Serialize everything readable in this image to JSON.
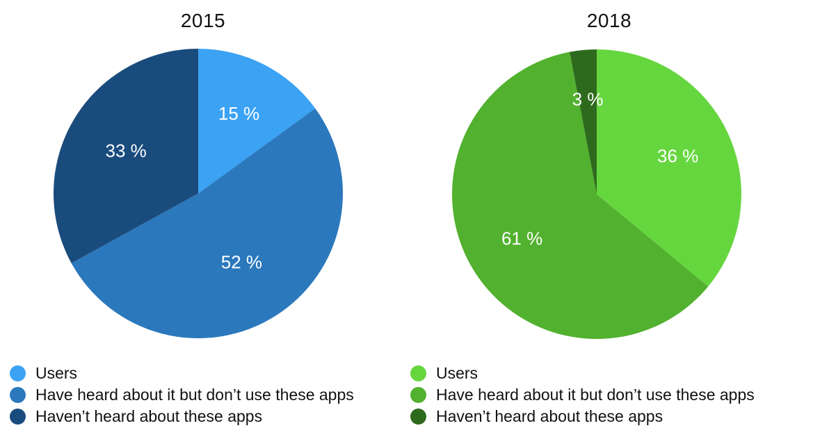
{
  "chart_data": [
    {
      "type": "pie",
      "title": "2015",
      "slices": [
        {
          "label": "Users",
          "value": 15,
          "display": "15 %",
          "color": "#3ba2f4"
        },
        {
          "label": "Have heard about it but don’t use these apps",
          "value": 52,
          "display": "52 %",
          "color": "#2b78bd"
        },
        {
          "label": "Haven’t heard about these apps",
          "value": 33,
          "display": "33 %",
          "color": "#1a4b7d"
        }
      ],
      "start_angle_deg": 0,
      "direction": "clockwise",
      "legend_position": "bottom-left"
    },
    {
      "type": "pie",
      "title": "2018",
      "slices": [
        {
          "label": "Users",
          "value": 36,
          "display": "36 %",
          "color": "#66d63f"
        },
        {
          "label": "Have heard about it but don’t use these apps",
          "value": 61,
          "display": "61 %",
          "color": "#52b12f"
        },
        {
          "label": "Haven’t heard about these apps",
          "value": 3,
          "display": "3 %",
          "color": "#2e6a1d"
        }
      ],
      "start_angle_deg": 0,
      "direction": "clockwise",
      "legend_position": "bottom-left"
    }
  ]
}
